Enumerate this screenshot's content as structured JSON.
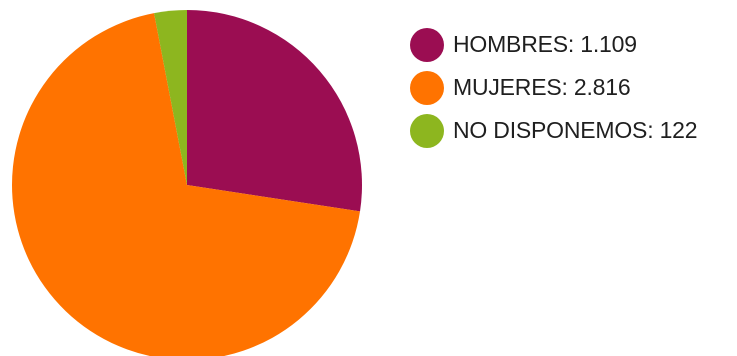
{
  "chart_data": {
    "type": "pie",
    "categories": [
      "HOMBRES",
      "MUJERES",
      "NO DISPONEMOS"
    ],
    "values": [
      1109,
      2816,
      122
    ],
    "colors": [
      "#9b0d52",
      "#ff7300",
      "#8db61f"
    ],
    "legend_labels": [
      "HOMBRES: 1.109",
      "MUJERES: 2.816",
      "NO DISPONEMOS: 122"
    ],
    "legend_position": "right",
    "start_angle": "top",
    "direction": "clockwise"
  }
}
